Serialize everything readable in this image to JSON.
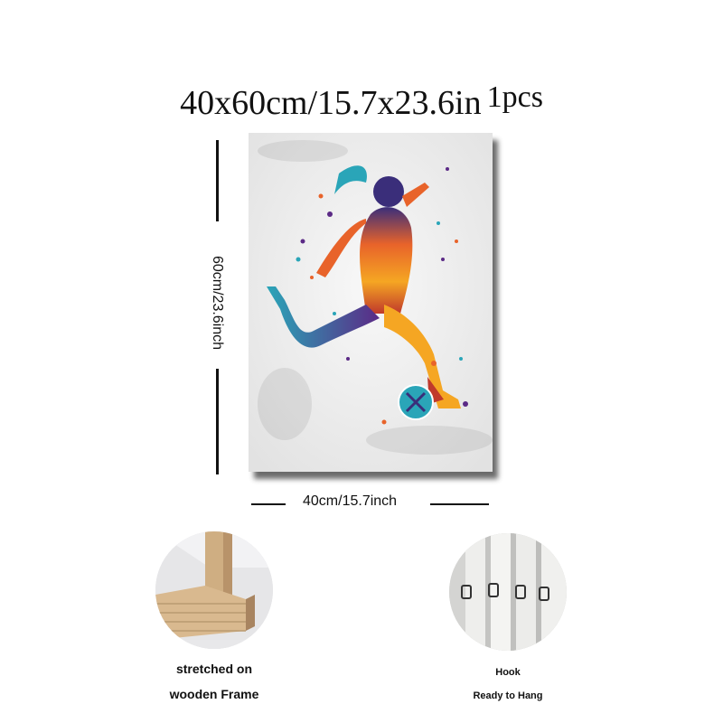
{
  "header": {
    "size_text": "40x60cm/15.7x23.6in",
    "quantity_text": "1pcs"
  },
  "dimensions": {
    "height_label": "60cm/23.6inch",
    "width_label": "40cm/15.7inch"
  },
  "features": [
    {
      "name": "frame",
      "line1": "stretched on",
      "line2": "wooden Frame"
    },
    {
      "name": "hook",
      "line1": "Hook",
      "line2": "Ready to Hang"
    }
  ],
  "artwork": {
    "subject": "watercolor female soccer player kicking ball",
    "colors": [
      "#2aa5b8",
      "#e8632a",
      "#f5a623",
      "#5b2a86",
      "#c0392b"
    ]
  }
}
